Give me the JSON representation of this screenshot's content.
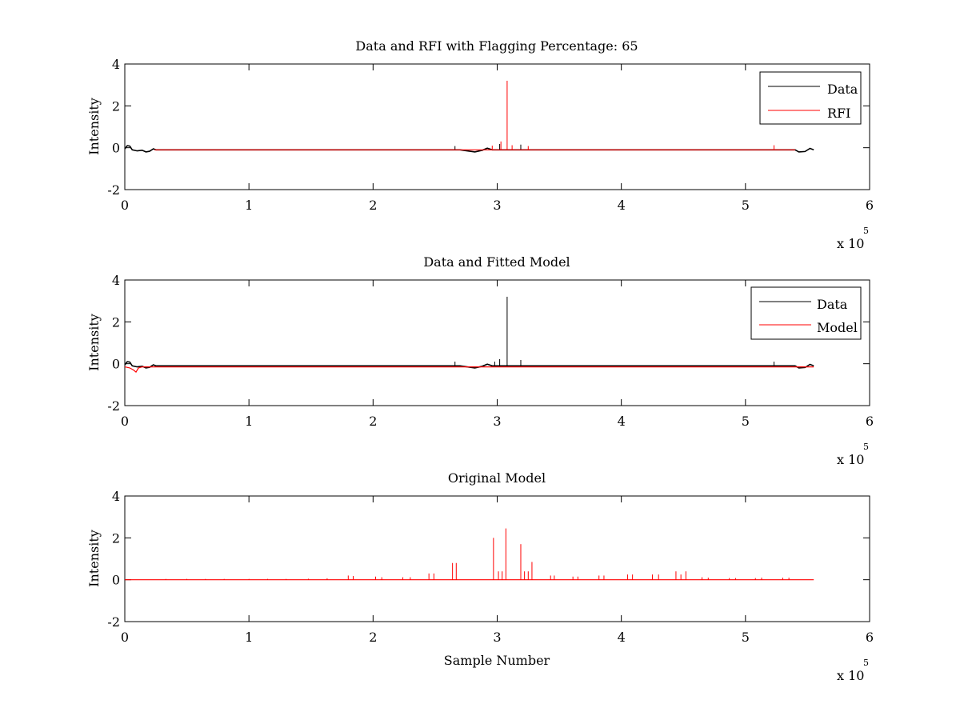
{
  "chart_data": [
    {
      "type": "line",
      "title": "Data and RFI with Flagging Percentage: 65",
      "xlabel": "",
      "ylabel": "Intensity",
      "xlim": [
        0,
        600000
      ],
      "ylim": [
        -2,
        4
      ],
      "xticks": [
        0,
        1,
        2,
        3,
        4,
        5,
        6
      ],
      "yticks": [
        -2,
        0,
        2,
        4
      ],
      "x_multiplier": "x 10",
      "x_multiplier_exp": "5",
      "legend": {
        "position": "top-right",
        "entries": [
          {
            "name": "Data",
            "color": "#000000"
          },
          {
            "name": "RFI",
            "color": "#ff0000"
          }
        ]
      },
      "series": [
        {
          "name": "Data",
          "color": "#000000",
          "points": [
            [
              0,
              -0.05
            ],
            [
              2000,
              0.1
            ],
            [
              4000,
              0.08
            ],
            [
              6000,
              -0.1
            ],
            [
              10000,
              -0.15
            ],
            [
              14000,
              -0.12
            ],
            [
              17000,
              -0.2
            ],
            [
              20000,
              -0.17
            ],
            [
              23000,
              -0.05
            ],
            [
              25000,
              -0.1
            ],
            [
              100000,
              -0.1
            ],
            [
              200000,
              -0.1
            ],
            [
              270000,
              -0.1
            ],
            [
              282000,
              -0.2
            ],
            [
              288000,
              -0.12
            ],
            [
              292000,
              -0.02
            ],
            [
              296000,
              -0.1
            ],
            [
              400000,
              -0.1
            ],
            [
              540000,
              -0.1
            ],
            [
              543000,
              -0.2
            ],
            [
              548000,
              -0.18
            ],
            [
              552000,
              -0.03
            ],
            [
              555000,
              -0.1
            ]
          ],
          "spikes": [
            [
              266000,
              0.08
            ],
            [
              302000,
              0.18
            ],
            [
              319000,
              0.15
            ]
          ]
        },
        {
          "name": "RFI",
          "color": "#ff0000",
          "points": [
            [
              24000,
              -0.1
            ],
            [
              300000,
              -0.1
            ],
            [
              540000,
              -0.1
            ]
          ],
          "spikes": [
            [
              308000,
              3.2
            ],
            [
              303000,
              0.3
            ],
            [
              296000,
              0.1
            ],
            [
              312000,
              0.12
            ],
            [
              325000,
              0.08
            ],
            [
              523000,
              0.12
            ]
          ]
        }
      ]
    },
    {
      "type": "line",
      "title": "Data and Fitted Model",
      "xlabel": "",
      "ylabel": "Intensity",
      "xlim": [
        0,
        600000
      ],
      "ylim": [
        -2,
        4
      ],
      "xticks": [
        0,
        1,
        2,
        3,
        4,
        5,
        6
      ],
      "yticks": [
        -2,
        0,
        2,
        4
      ],
      "x_multiplier": "x 10",
      "x_multiplier_exp": "5",
      "legend": {
        "position": "top-right",
        "entries": [
          {
            "name": "Data",
            "color": "#000000"
          },
          {
            "name": "Model",
            "color": "#ff0000"
          }
        ]
      },
      "series": [
        {
          "name": "Data",
          "color": "#000000",
          "points": [
            [
              0,
              -0.05
            ],
            [
              2000,
              0.1
            ],
            [
              4000,
              0.08
            ],
            [
              6000,
              -0.1
            ],
            [
              10000,
              -0.15
            ],
            [
              14000,
              -0.12
            ],
            [
              17000,
              -0.2
            ],
            [
              20000,
              -0.17
            ],
            [
              23000,
              -0.05
            ],
            [
              25000,
              -0.1
            ],
            [
              100000,
              -0.1
            ],
            [
              200000,
              -0.1
            ],
            [
              270000,
              -0.1
            ],
            [
              282000,
              -0.2
            ],
            [
              288000,
              -0.12
            ],
            [
              292000,
              -0.02
            ],
            [
              296000,
              -0.1
            ],
            [
              400000,
              -0.1
            ],
            [
              540000,
              -0.1
            ],
            [
              543000,
              -0.2
            ],
            [
              548000,
              -0.18
            ],
            [
              552000,
              -0.03
            ],
            [
              555000,
              -0.1
            ]
          ],
          "spikes": [
            [
              308000,
              3.2
            ],
            [
              302000,
              0.22
            ],
            [
              298000,
              0.1
            ],
            [
              319000,
              0.18
            ],
            [
              266000,
              0.1
            ],
            [
              523000,
              0.1
            ]
          ]
        },
        {
          "name": "Model",
          "color": "#ff0000",
          "points": [
            [
              0,
              -0.15
            ],
            [
              4000,
              -0.2
            ],
            [
              7000,
              -0.3
            ],
            [
              9000,
              -0.4
            ],
            [
              11000,
              -0.2
            ],
            [
              14000,
              -0.15
            ],
            [
              300000,
              -0.15
            ],
            [
              555000,
              -0.15
            ]
          ],
          "spikes": []
        }
      ]
    },
    {
      "type": "line",
      "title": "Original Model",
      "xlabel": "Sample Number",
      "ylabel": "Intensity",
      "xlim": [
        0,
        600000
      ],
      "ylim": [
        -2,
        4
      ],
      "xticks": [
        0,
        1,
        2,
        3,
        4,
        5,
        6
      ],
      "yticks": [
        -2,
        0,
        2,
        4
      ],
      "x_multiplier": "x 10",
      "x_multiplier_exp": "5",
      "legend": null,
      "series": [
        {
          "name": "Model",
          "color": "#ff0000",
          "points": [
            [
              0,
              0
            ],
            [
              555000,
              0
            ]
          ],
          "spikes": [
            [
              33000,
              0.04
            ],
            [
              50000,
              0.04
            ],
            [
              65000,
              0.04
            ],
            [
              80000,
              0.04
            ],
            [
              100000,
              0.04
            ],
            [
              115000,
              0.04
            ],
            [
              130000,
              0.04
            ],
            [
              148000,
              0.05
            ],
            [
              163000,
              0.07
            ],
            [
              180000,
              0.2
            ],
            [
              184000,
              0.18
            ],
            [
              202000,
              0.15
            ],
            [
              207000,
              0.12
            ],
            [
              224000,
              0.12
            ],
            [
              230000,
              0.12
            ],
            [
              245000,
              0.3
            ],
            [
              249000,
              0.3
            ],
            [
              264000,
              0.8
            ],
            [
              267000,
              0.8
            ],
            [
              297000,
              2.0
            ],
            [
              301000,
              0.4
            ],
            [
              304000,
              0.4
            ],
            [
              307000,
              2.45
            ],
            [
              319000,
              1.7
            ],
            [
              322000,
              0.4
            ],
            [
              325000,
              0.4
            ],
            [
              328000,
              0.85
            ],
            [
              343000,
              0.2
            ],
            [
              346000,
              0.2
            ],
            [
              361000,
              0.15
            ],
            [
              365000,
              0.15
            ],
            [
              382000,
              0.2
            ],
            [
              386000,
              0.2
            ],
            [
              405000,
              0.25
            ],
            [
              409000,
              0.25
            ],
            [
              425000,
              0.25
            ],
            [
              430000,
              0.25
            ],
            [
              444000,
              0.4
            ],
            [
              448000,
              0.25
            ],
            [
              452000,
              0.4
            ],
            [
              465000,
              0.12
            ],
            [
              470000,
              0.1
            ],
            [
              487000,
              0.08
            ],
            [
              492000,
              0.08
            ],
            [
              508000,
              0.08
            ],
            [
              513000,
              0.1
            ],
            [
              530000,
              0.1
            ],
            [
              535000,
              0.1
            ]
          ]
        }
      ]
    }
  ]
}
